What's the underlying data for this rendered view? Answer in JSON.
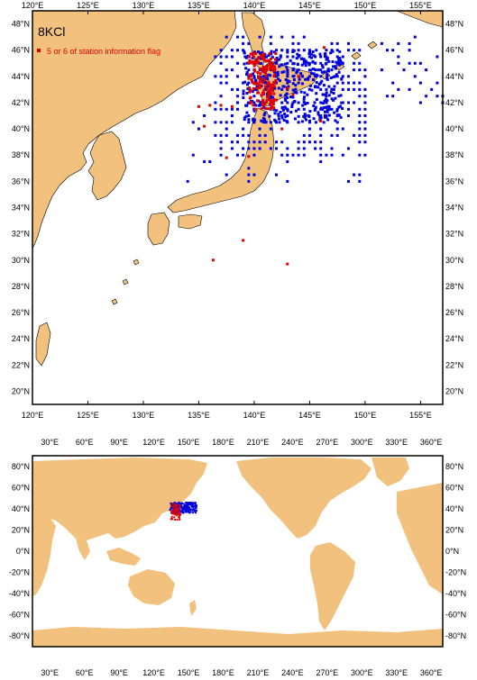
{
  "colors": {
    "land": "#f2c17d",
    "ocean": "#ffffff",
    "station": "#0000dd",
    "flagged": "#e00000",
    "frame": "#000000"
  },
  "top_map": {
    "title": "8KCl",
    "legend": "5 or 6 of station information flag",
    "lon_ticks": [
      "120°E",
      "125°E",
      "130°E",
      "135°E",
      "140°E",
      "145°E",
      "150°E",
      "155°E"
    ],
    "lat_ticks": [
      "20°N",
      "22°N",
      "24°N",
      "26°N",
      "28°N",
      "30°N",
      "32°N",
      "34°N",
      "36°N",
      "38°N",
      "40°N",
      "42°N",
      "44°N",
      "46°N",
      "48°N"
    ]
  },
  "bottom_map": {
    "lon_ticks": [
      "30°E",
      "60°E",
      "90°E",
      "120°E",
      "150°E",
      "180°E",
      "210°E",
      "240°E",
      "270°E",
      "300°E",
      "330°E",
      "360°E"
    ],
    "lat_ticks": [
      "80°N",
      "60°N",
      "40°N",
      "20°N",
      "0°N",
      "-20°N",
      "-40°N",
      "-60°N",
      "-80°N"
    ]
  },
  "chart_data": {
    "type": "scatter",
    "series": [
      {
        "name": "",
        "color": "#0000dd",
        "extent_lon": [
          134,
          157
        ],
        "extent_lat": [
          36,
          47
        ]
      },
      {
        "name": "5 or 6 of station information flag",
        "color": "#e00000",
        "extent_lon": [
          135,
          144
        ],
        "extent_lat": [
          29.7,
          45.8
        ]
      }
    ]
  }
}
